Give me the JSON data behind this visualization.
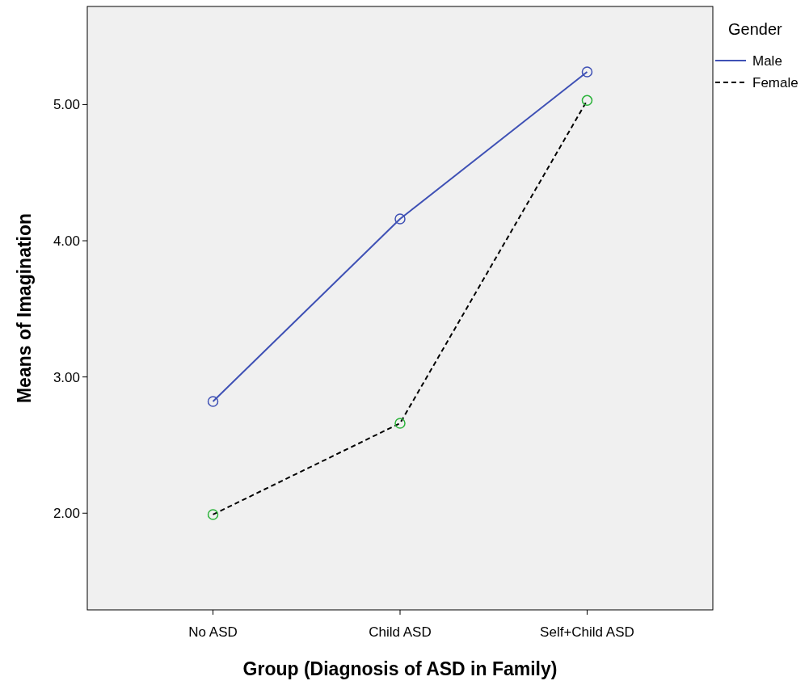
{
  "chart_data": {
    "type": "line",
    "xlabel": "Group (Diagnosis of ASD in Family)",
    "ylabel": "Means of Imagination",
    "legend_title": "Gender",
    "legend": "top right",
    "marker": "circle",
    "categories": [
      "No ASD",
      "Child ASD",
      "Self+Child ASD"
    ],
    "ylim": [
      1.29,
      5.72
    ],
    "yticks": [
      {
        "value": 2,
        "label": "2.00"
      },
      {
        "value": 3,
        "label": "3.00"
      },
      {
        "value": 4,
        "label": "4.00"
      },
      {
        "value": 5,
        "label": "5.00"
      }
    ],
    "grid": false,
    "series": [
      {
        "name": "Male",
        "color": "#3f51b5",
        "line_style": "solid",
        "colors": [
          "#3f51b5",
          "#3f51b5",
          "#3f51b5"
        ],
        "values": [
          2.82,
          4.16,
          5.24
        ]
      },
      {
        "name": "Female",
        "color": "#000000",
        "line_style": "dashed",
        "colors": [
          "#2bb33a",
          "#2bb33a",
          "#2bb33a"
        ],
        "values": [
          1.99,
          2.66,
          5.03
        ]
      }
    ]
  }
}
